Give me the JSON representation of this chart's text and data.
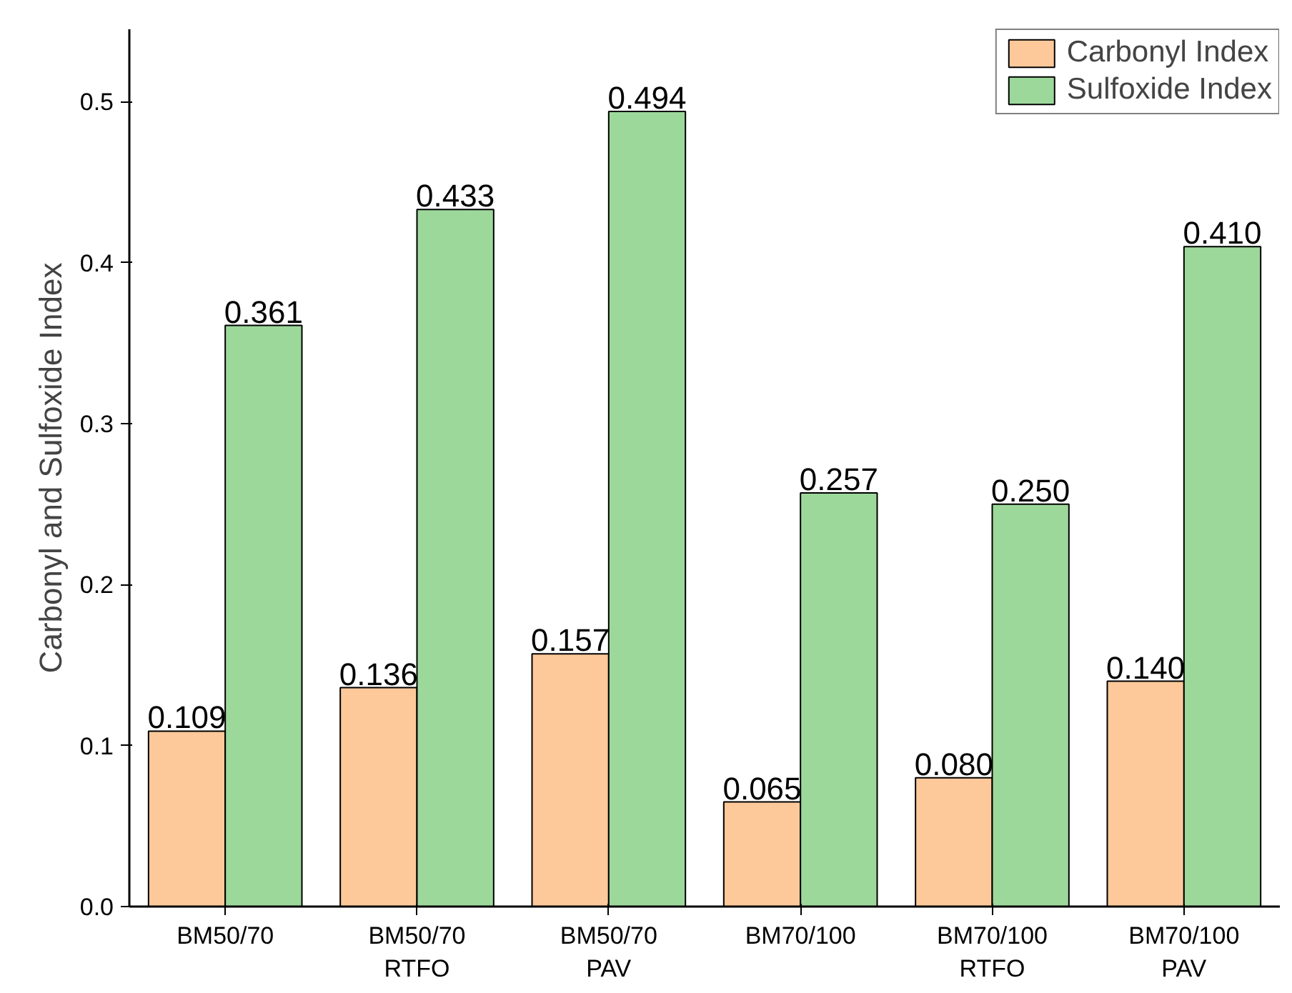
{
  "chart_data": {
    "type": "bar",
    "ylabel": "Carbonyl and Sulfoxide Index",
    "categories": [
      "BM50/70",
      "BM50/70\nRTFO",
      "BM50/70\nPAV",
      "BM70/100",
      "BM70/100\nRTFO",
      "BM70/100\nPAV"
    ],
    "series": [
      {
        "name": "Carbonyl Index",
        "color": "#fdc99b",
        "values": [
          0.109,
          0.136,
          0.157,
          0.065,
          0.08,
          0.14
        ],
        "value_labels": [
          "0.109",
          "0.136",
          "0.157",
          "0.065",
          "0.080",
          "0.140"
        ]
      },
      {
        "name": "Sulfoxide Index",
        "color": "#9dd89b",
        "values": [
          0.361,
          0.433,
          0.494,
          0.257,
          0.25,
          0.41
        ],
        "value_labels": [
          "0.361",
          "0.433",
          "0.494",
          "0.257",
          "0.250",
          "0.410"
        ]
      }
    ],
    "ylim": [
      0,
      0.545
    ],
    "yticks": [
      {
        "value": 0,
        "label": "0.0"
      },
      {
        "value": 0.1,
        "label": "0.1"
      },
      {
        "value": 0.2,
        "label": "0.2"
      },
      {
        "value": 0.3,
        "label": "0.3"
      },
      {
        "value": 0.4,
        "label": "0.4"
      },
      {
        "value": 0.5,
        "label": "0.5"
      }
    ],
    "grid": false,
    "legend": "top right"
  }
}
